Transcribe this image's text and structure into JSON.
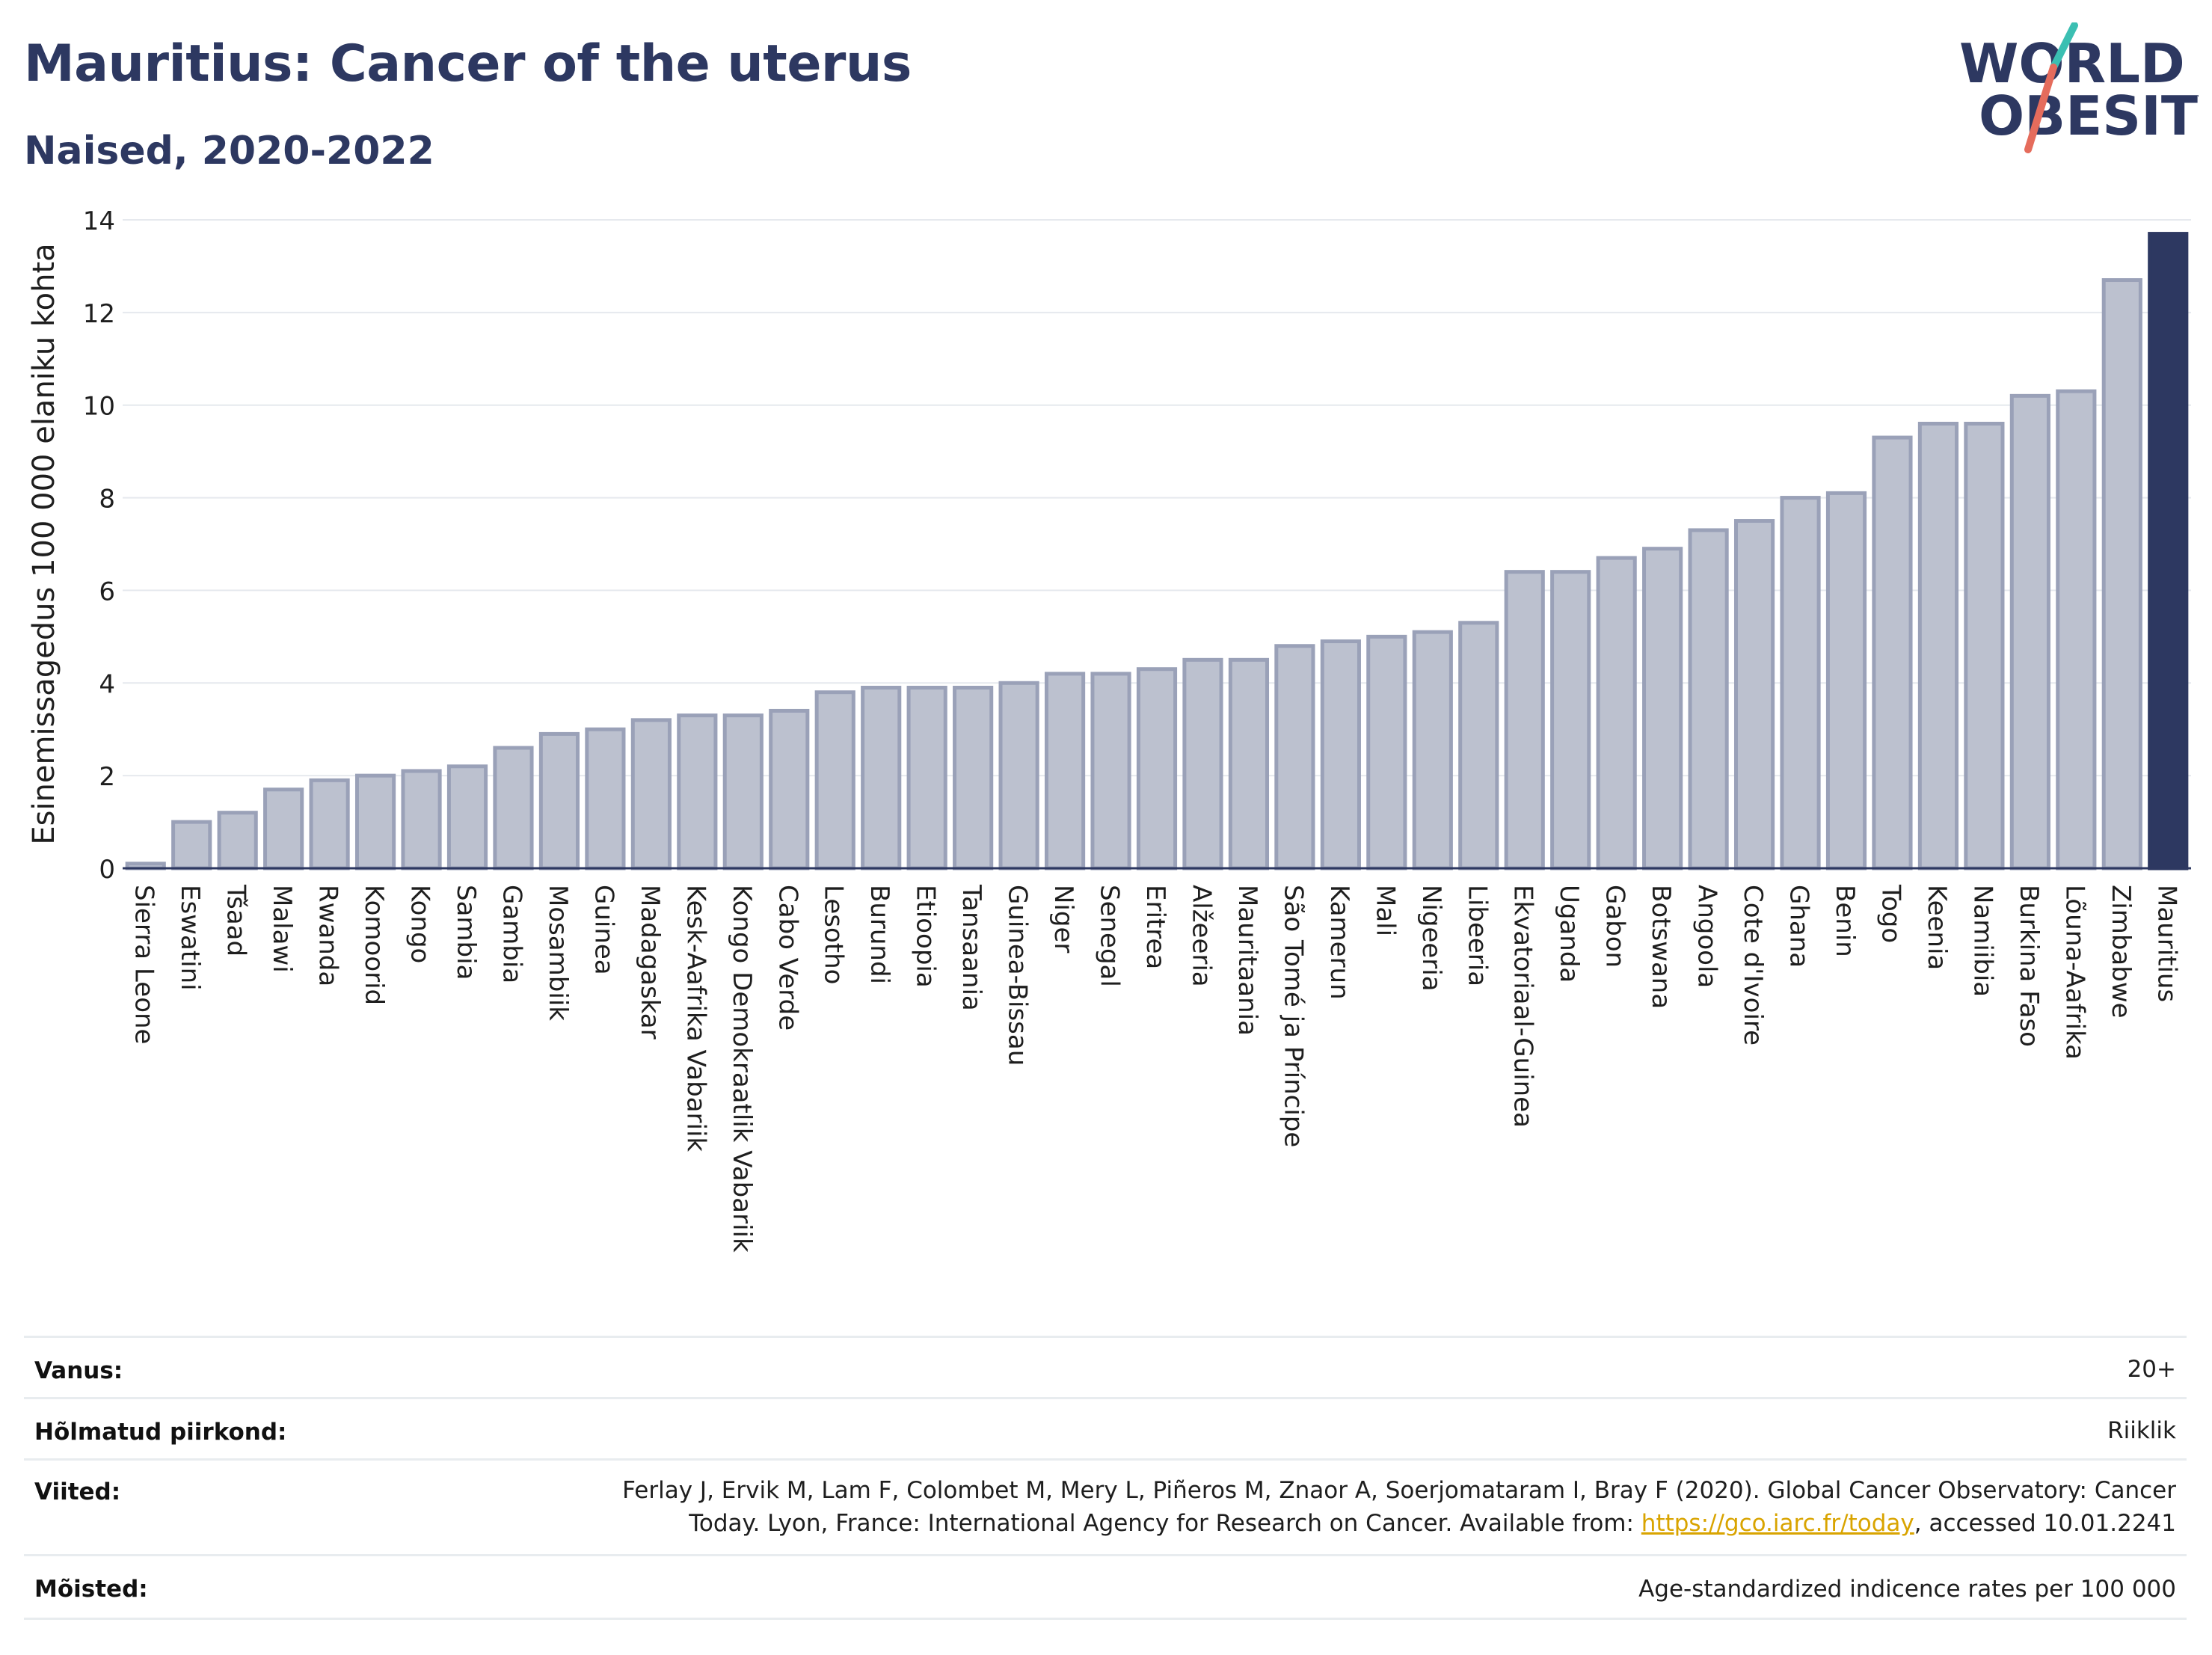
{
  "header": {
    "title": "Mauritius: Cancer of the uterus",
    "subtitle": "Naised, 2020-2022"
  },
  "logo": {
    "line1": "WORLD",
    "line2": "OBESITY",
    "icon": "world-obesity-logo"
  },
  "colors": {
    "highlight": "#2d3861",
    "bar_fill": "#bcc1cf",
    "bar_stroke": "#9aa1b8",
    "text_dark": "#2d3861",
    "link": "#d9a400"
  },
  "chart_data": {
    "type": "bar",
    "ylabel": "Esinemissagedus 100 000 elaniku kohta",
    "xlabel": "",
    "ylim": [
      0,
      14
    ],
    "yticks": [
      0,
      2,
      4,
      6,
      8,
      10,
      12,
      14
    ],
    "grid": true,
    "highlight": "Mauritius",
    "categories": [
      "Sierra Leone",
      "Eswatini",
      "Tšaad",
      "Malawi",
      "Rwanda",
      "Komoorid",
      "Kongo",
      "Sambia",
      "Gambia",
      "Mosambiik",
      "Guinea",
      "Madagaskar",
      "Kesk-Aafrika Vabariik",
      "Kongo Demokraatlik Vabariik",
      "Cabo Verde",
      "Lesotho",
      "Burundi",
      "Etioopia",
      "Tansaania",
      "Guinea-Bissau",
      "Niger",
      "Senegal",
      "Eritrea",
      "Alžeeria",
      "Mauritaania",
      "São Tomé ja Príncipe",
      "Kamerun",
      "Mali",
      "Nigeeria",
      "Libeeria",
      "Ekvatoriaal-Guinea",
      "Uganda",
      "Gabon",
      "Botswana",
      "Angoola",
      "Cote d'Ivoire",
      "Ghana",
      "Benin",
      "Togo",
      "Keenia",
      "Namiibia",
      "Burkina Faso",
      "Lõuna-Aafrika",
      "Zimbabwe",
      "Mauritius"
    ],
    "values": [
      0.1,
      1.0,
      1.2,
      1.7,
      1.9,
      2.0,
      2.1,
      2.2,
      2.6,
      2.9,
      3.0,
      3.2,
      3.3,
      3.3,
      3.4,
      3.8,
      3.9,
      3.9,
      3.9,
      4.0,
      4.2,
      4.2,
      4.3,
      4.5,
      4.5,
      4.8,
      4.9,
      5.0,
      5.1,
      5.3,
      6.4,
      6.4,
      6.7,
      6.9,
      7.3,
      7.5,
      8.0,
      8.1,
      9.3,
      9.6,
      9.6,
      10.2,
      10.3,
      12.7,
      13.7
    ]
  },
  "meta": {
    "age_label": "Vanus:",
    "age_value": "20+",
    "region_label": "Hõlmatud piirkond:",
    "region_value": "Riiklik",
    "refs_label": "Viited:",
    "refs_line1": "Ferlay J, Ervik M, Lam F, Colombet M, Mery L, Piñeros M, Znaor A, Soerjomataram I, Bray F (2020). Global Cancer Observatory: Cancer",
    "refs_line2_pre": "Today. Lyon, France: International Agency for Research on Cancer. Available from: ",
    "refs_link": "https://gco.iarc.fr/today",
    "refs_line2_post": ", accessed 10.01.2241",
    "definitions_label": "Mõisted:",
    "definitions_value": "Age-standardized indicence rates per 100 000"
  }
}
